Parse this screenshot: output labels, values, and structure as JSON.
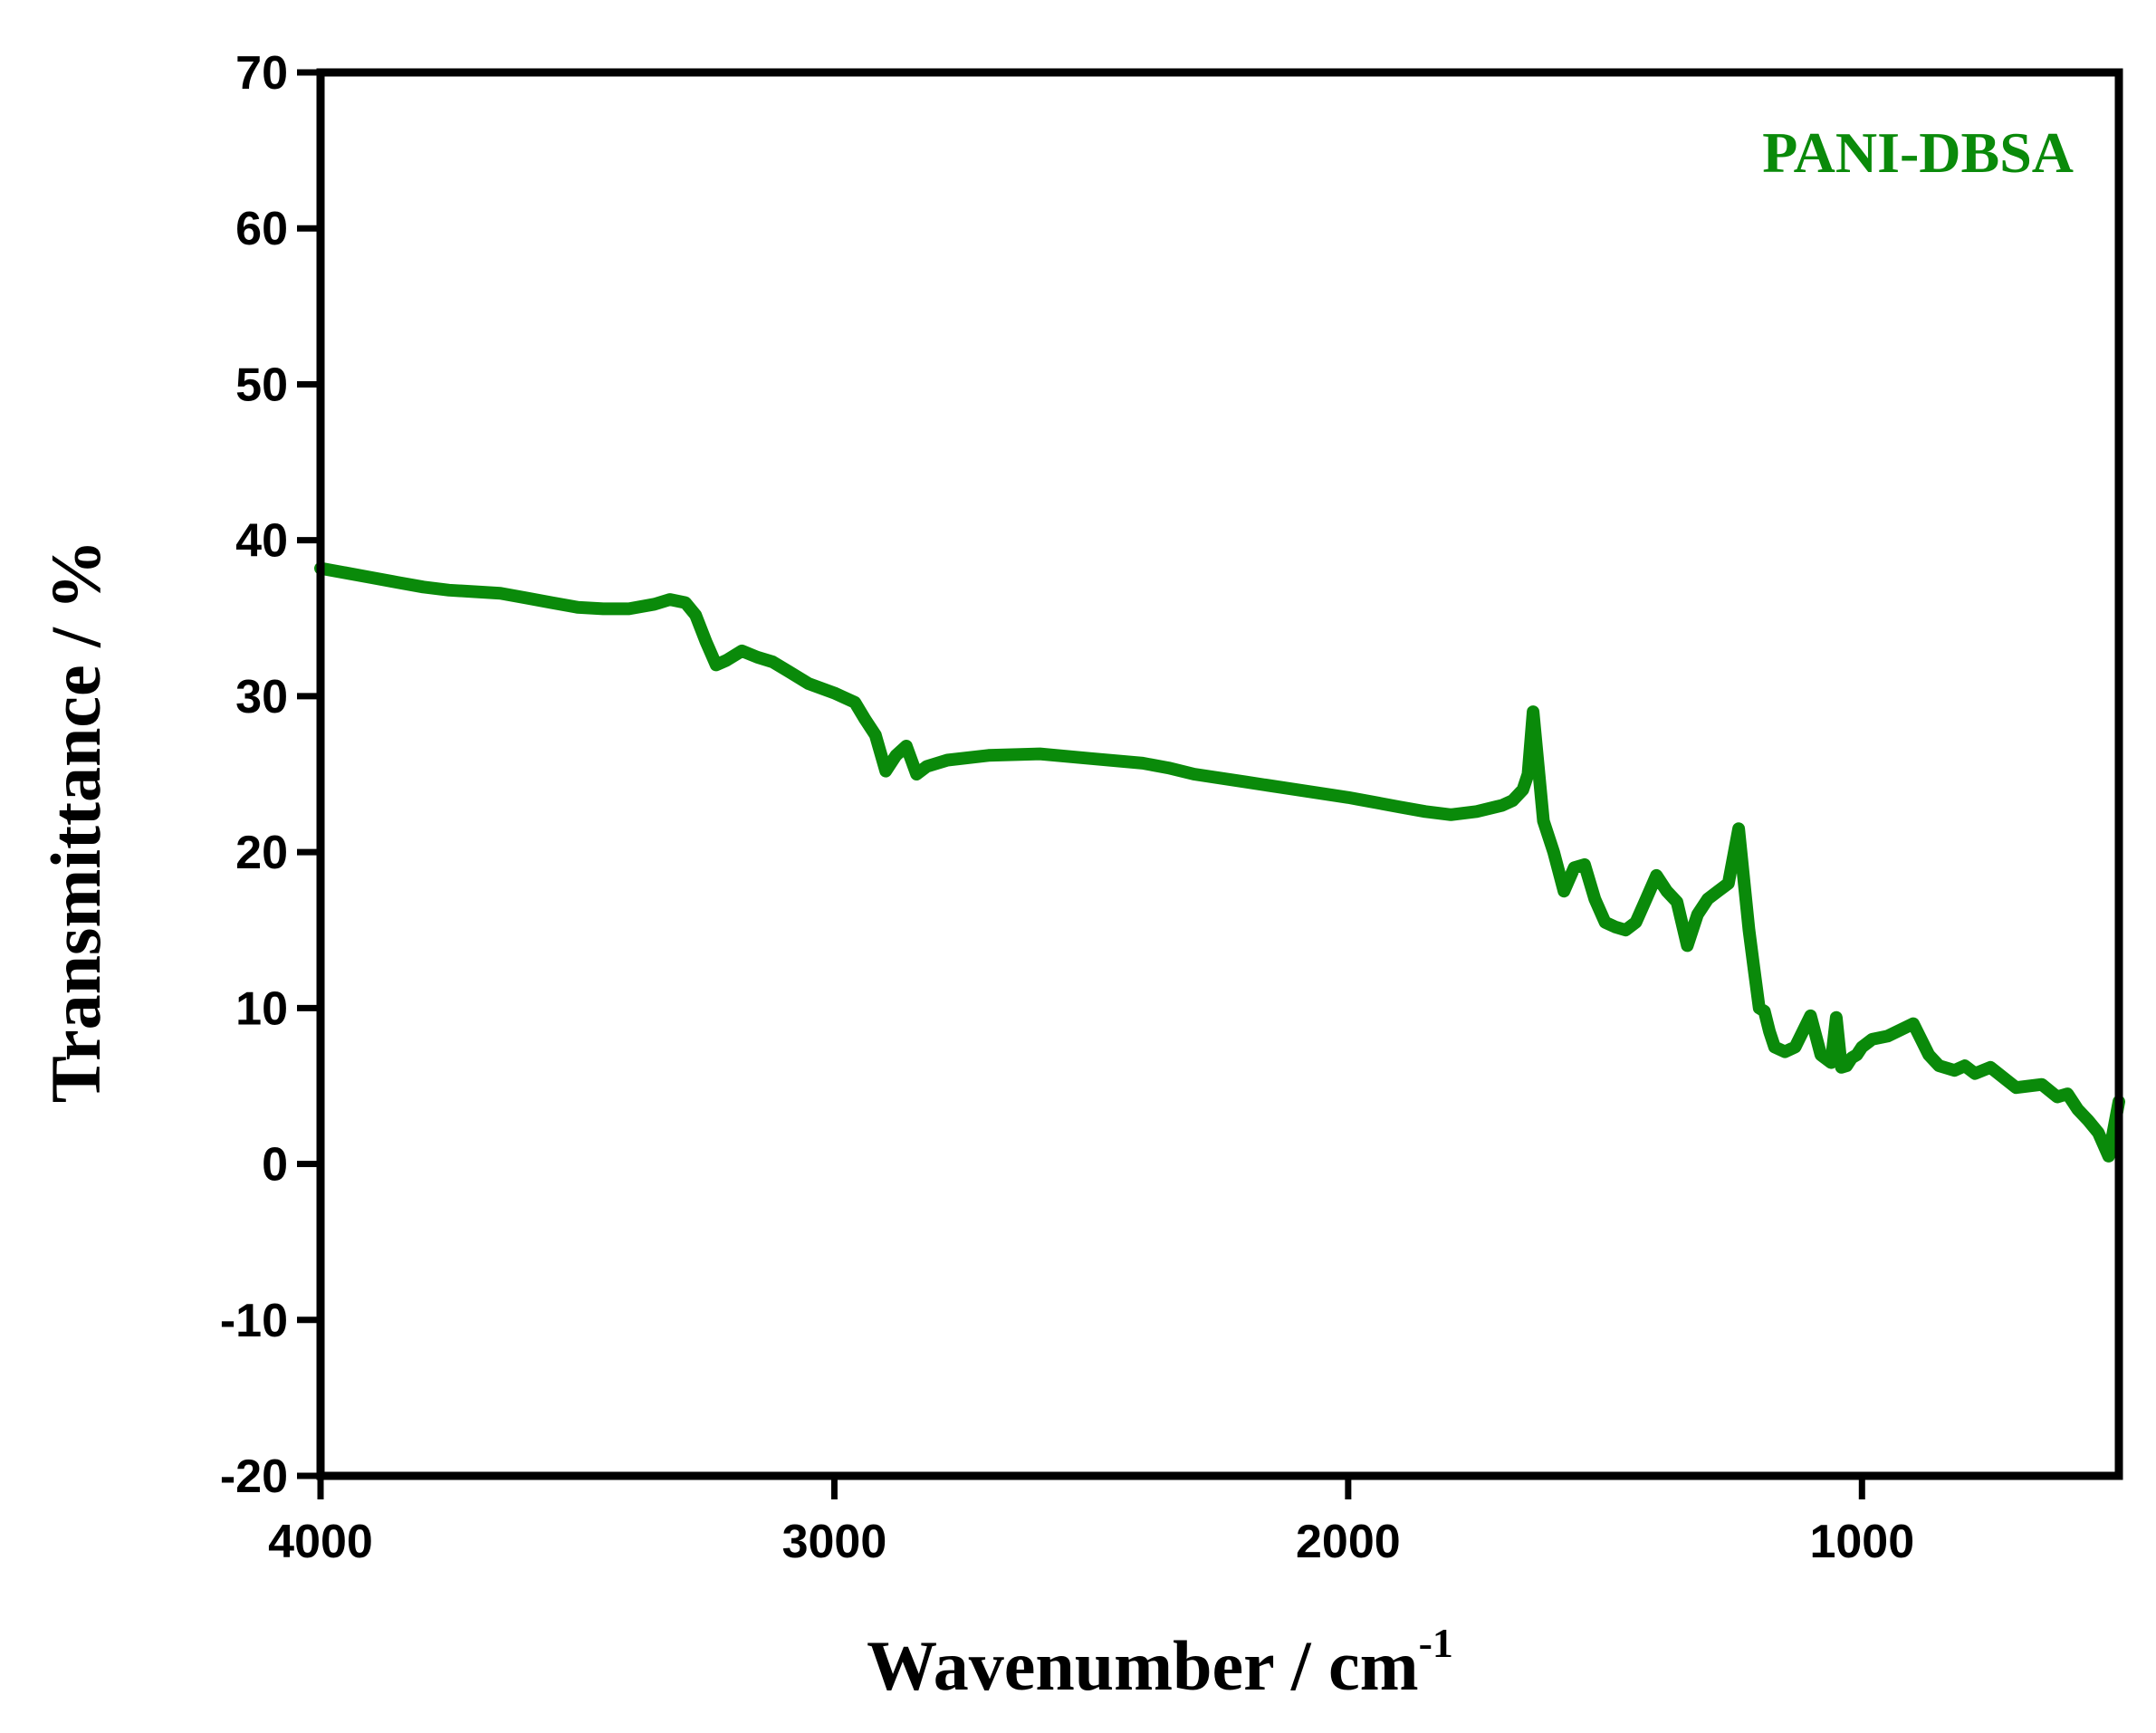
{
  "chart_data": {
    "type": "line",
    "title": "",
    "xlabel": "Wavenumber / cm",
    "xlabel_superscript": "-1",
    "ylabel": "Transmittance / %",
    "xlim": [
      4000,
      500
    ],
    "ylim": [
      -20,
      70
    ],
    "x_ticks": [
      4000,
      3000,
      2000,
      1000
    ],
    "x_tick_labels": [
      "4000",
      "3000",
      "2000",
      "1000"
    ],
    "y_ticks": [
      -20,
      -10,
      0,
      10,
      20,
      30,
      40,
      50,
      60,
      70
    ],
    "y_tick_labels": [
      "-20",
      "-10",
      "0",
      "10",
      "20",
      "30",
      "40",
      "50",
      "60",
      "70"
    ],
    "grid": false,
    "legend_position": "top-right",
    "series": [
      {
        "name": "PANI-DBSA",
        "color": "#0a8a0a",
        "x": [
          4000,
          3950,
          3900,
          3850,
          3800,
          3750,
          3700,
          3650,
          3600,
          3550,
          3500,
          3450,
          3400,
          3350,
          3320,
          3290,
          3270,
          3250,
          3230,
          3210,
          3180,
          3150,
          3120,
          3090,
          3050,
          3000,
          2960,
          2940,
          2920,
          2900,
          2880,
          2860,
          2840,
          2820,
          2780,
          2700,
          2600,
          2500,
          2400,
          2350,
          2300,
          2200,
          2100,
          2000,
          1900,
          1850,
          1800,
          1750,
          1700,
          1680,
          1660,
          1650,
          1640,
          1630,
          1620,
          1600,
          1580,
          1560,
          1540,
          1520,
          1500,
          1480,
          1460,
          1440,
          1420,
          1400,
          1380,
          1360,
          1340,
          1320,
          1300,
          1280,
          1260,
          1240,
          1220,
          1210,
          1200,
          1190,
          1180,
          1170,
          1150,
          1130,
          1100,
          1080,
          1060,
          1050,
          1040,
          1030,
          1020,
          1010,
          1000,
          980,
          950,
          900,
          870,
          850,
          820,
          800,
          780,
          750,
          700,
          650,
          620,
          600,
          580,
          560,
          540,
          520,
          500
        ],
        "y": [
          38.2,
          37.9,
          37.6,
          37.3,
          37.0,
          36.8,
          36.7,
          36.6,
          36.3,
          36.0,
          35.7,
          35.6,
          35.6,
          35.9,
          36.2,
          36.0,
          35.2,
          33.5,
          32.0,
          32.3,
          32.9,
          32.5,
          32.2,
          31.6,
          30.8,
          30.2,
          29.6,
          28.5,
          27.5,
          25.2,
          26.2,
          26.8,
          25.0,
          25.5,
          25.9,
          26.2,
          26.3,
          26.0,
          25.7,
          25.4,
          25.0,
          24.5,
          24.0,
          23.5,
          22.9,
          22.6,
          22.4,
          22.6,
          23.0,
          23.3,
          24.0,
          25.0,
          29.0,
          25.5,
          22.0,
          20.0,
          17.5,
          19.0,
          19.2,
          17.0,
          15.5,
          15.2,
          15.0,
          15.5,
          17.0,
          18.5,
          17.5,
          16.8,
          14.0,
          16.0,
          17.0,
          17.5,
          18.0,
          21.5,
          15.0,
          12.5,
          10.0,
          9.8,
          8.5,
          7.5,
          7.2,
          7.5,
          9.5,
          7.0,
          6.5,
          9.4,
          6.2,
          6.3,
          6.8,
          7.0,
          7.5,
          8.0,
          8.2,
          9.0,
          7.0,
          6.3,
          6.0,
          6.3,
          5.8,
          6.2,
          4.9,
          5.1,
          4.3,
          4.5,
          3.5,
          2.8,
          2.0,
          0.5,
          4.0
        ]
      }
    ]
  }
}
